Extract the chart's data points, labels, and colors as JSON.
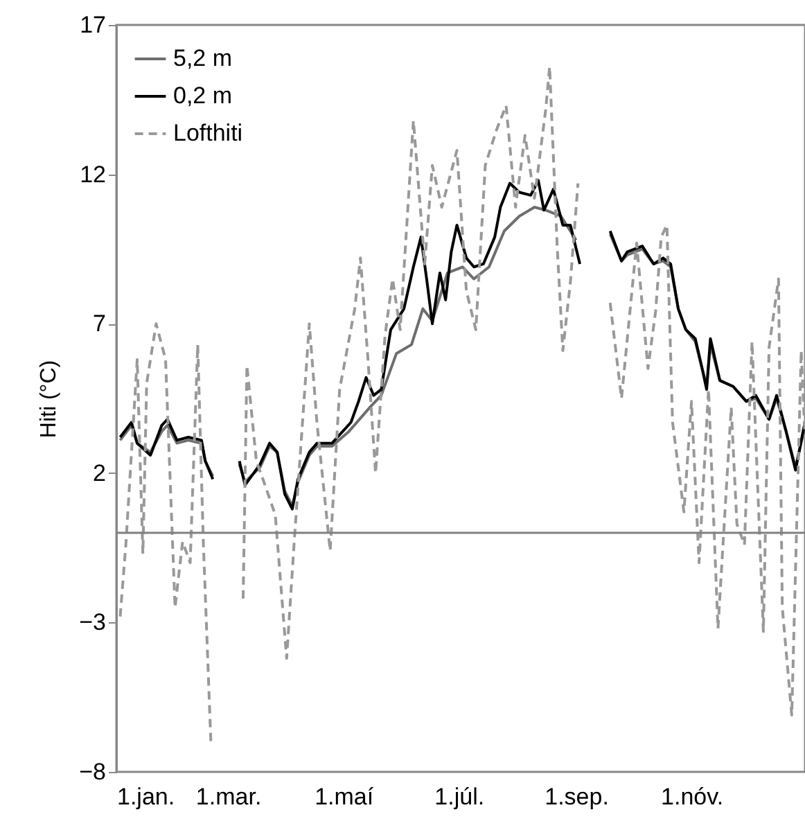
{
  "chart_data": {
    "type": "line",
    "ylabel": "Hiti (°C)",
    "xlim": [
      "--01-01",
      "--12-31"
    ],
    "xticks": [
      {
        "value": "--01-01",
        "label": "1.jan."
      },
      {
        "value": "--03-01",
        "label": "1.mar."
      },
      {
        "value": "--05-01",
        "label": "1.maí"
      },
      {
        "value": "--07-01",
        "label": "1.júl."
      },
      {
        "value": "--09-01",
        "label": "1.sep."
      },
      {
        "value": "--11-01",
        "label": "1.nóv."
      }
    ],
    "ylim": [
      -8,
      17
    ],
    "yticks": [
      -8,
      -3,
      2,
      7,
      12,
      17
    ],
    "grid": false,
    "legend": "top left",
    "marker": "none",
    "ref_lines": [
      {
        "axis": "y",
        "value": 0,
        "color": "#808080"
      }
    ],
    "series": [
      {
        "name": "5,2 m",
        "color": "#6e6e6e",
        "line_style": "solid",
        "x": [
          "--01-03",
          "--01-09",
          "--01-12",
          "--01-19",
          "--01-25",
          "--01-28",
          "--02-02",
          "--02-08",
          "--02-15",
          "--02-17",
          "--02-21",
          "--02-28",
          "--03-07",
          "--03-10",
          "--03-18",
          "--03-23",
          "--03-27",
          "--03-31",
          "--04-04",
          "--04-07",
          "--04-13",
          "--04-17",
          "--04-25",
          "--05-04",
          "--05-15",
          "--05-21",
          "--05-29",
          "--06-06",
          "--06-12",
          "--06-17",
          "--06-25",
          "--07-03",
          "--07-09",
          "--07-17",
          "--07-25",
          "--08-02",
          "--08-10",
          "--08-16",
          "--08-24",
          "--09-01",
          "--09-10",
          "--09-19",
          "--09-25",
          "--09-28",
          "--10-06",
          "--10-12",
          "--10-17",
          "--10-21",
          "--10-25",
          "--10-29",
          "--11-03",
          "--11-07",
          "--11-09",
          "--11-11",
          "--11-16",
          "--11-23",
          "--11-30",
          "--12-05",
          "--12-12",
          "--12-16",
          "--12-21",
          "--12-26",
          "--12-30",
          "--12-31"
        ],
        "values": [
          3.1,
          3.6,
          3.0,
          2.7,
          3.4,
          3.6,
          3.0,
          3.1,
          3.0,
          2.4,
          1.9,
          null,
          2.3,
          1.7,
          2.2,
          2.9,
          2.7,
          1.4,
          0.9,
          1.7,
          2.6,
          2.9,
          2.9,
          3.4,
          4.2,
          4.6,
          6.0,
          6.3,
          7.5,
          7.1,
          8.7,
          8.9,
          8.5,
          8.9,
          10.1,
          10.6,
          10.9,
          10.8,
          10.6,
          9.8,
          null,
          10.0,
          9.1,
          9.3,
          9.5,
          9.0,
          9.1,
          8.9,
          7.5,
          6.8,
          6.4,
          5.4,
          4.9,
          6.3,
          5.1,
          4.9,
          4.4,
          4.5,
          3.8,
          4.5,
          3.4,
          2.2,
          3.3,
          3.6
        ]
      },
      {
        "name": "0,2 m",
        "color": "#000000",
        "line_style": "solid",
        "x": [
          "--01-03",
          "--01-09",
          "--01-12",
          "--01-19",
          "--01-25",
          "--01-28",
          "--02-02",
          "--02-08",
          "--02-15",
          "--02-17",
          "--02-21",
          "--02-28",
          "--03-07",
          "--03-10",
          "--03-18",
          "--03-23",
          "--03-27",
          "--03-31",
          "--04-04",
          "--04-07",
          "--04-13",
          "--04-17",
          "--04-25",
          "--05-05",
          "--05-09",
          "--05-13",
          "--05-17",
          "--05-21",
          "--05-26",
          "--06-02",
          "--06-07",
          "--06-11",
          "--06-14",
          "--06-17",
          "--06-21",
          "--06-24",
          "--06-27",
          "--06-30",
          "--07-05",
          "--07-09",
          "--07-14",
          "--07-20",
          "--07-23",
          "--07-28",
          "--08-02",
          "--08-08",
          "--08-12",
          "--08-15",
          "--08-20",
          "--08-25",
          "--08-29",
          "--09-03",
          "--09-10",
          "--09-19",
          "--09-25",
          "--09-28",
          "--10-06",
          "--10-12",
          "--10-17",
          "--10-21",
          "--10-25",
          "--10-29",
          "--11-03",
          "--11-07",
          "--11-09",
          "--11-11",
          "--11-16",
          "--11-23",
          "--11-30",
          "--12-05",
          "--12-12",
          "--12-16",
          "--12-21",
          "--12-26",
          "--12-30",
          "--12-31"
        ],
        "values": [
          3.2,
          3.7,
          3.0,
          2.6,
          3.6,
          3.8,
          3.1,
          3.2,
          3.1,
          2.4,
          1.8,
          null,
          2.4,
          1.6,
          2.3,
          3.0,
          2.7,
          1.3,
          0.8,
          1.8,
          2.7,
          3.0,
          3.0,
          3.7,
          4.4,
          5.2,
          4.6,
          4.8,
          6.8,
          7.5,
          8.9,
          9.9,
          8.5,
          7.0,
          8.7,
          7.8,
          9.4,
          10.3,
          9.2,
          8.9,
          9.0,
          9.9,
          10.9,
          11.7,
          11.4,
          11.3,
          11.8,
          10.8,
          11.5,
          10.3,
          10.3,
          9.0,
          null,
          10.1,
          9.1,
          9.4,
          9.6,
          9.0,
          9.2,
          9.0,
          7.5,
          6.8,
          6.5,
          5.4,
          4.8,
          6.5,
          5.1,
          4.9,
          4.4,
          4.6,
          3.8,
          4.6,
          3.4,
          2.1,
          3.4,
          3.7
        ]
      },
      {
        "name": "Lofthiti",
        "color": "#999999",
        "line_style": "dashed",
        "x": [
          "--01-03",
          "--01-06",
          "--01-12",
          "--01-15",
          "--01-17",
          "--01-22",
          "--01-27",
          "--02-01",
          "--02-05",
          "--02-09",
          "--02-13",
          "--02-16",
          "--02-20",
          "--02-28",
          "--03-09",
          "--03-11",
          "--03-16",
          "--03-20",
          "--03-26",
          "--04-01",
          "--04-05",
          "--04-13",
          "--04-17",
          "--04-24",
          "--04-29",
          "--05-07",
          "--05-10",
          "--05-14",
          "--05-18",
          "--05-23",
          "--05-27",
          "--05-31",
          "--06-07",
          "--06-13",
          "--06-17",
          "--06-22",
          "--06-30",
          "--07-05",
          "--07-10",
          "--07-15",
          "--07-21",
          "--07-26",
          "--07-31",
          "--08-05",
          "--08-10",
          "--08-16",
          "--08-18",
          "--08-22",
          "--08-25",
          "--08-29",
          "--09-02",
          "--09-10",
          "--09-19",
          "--09-25",
          "--10-03",
          "--10-09",
          "--10-13",
          "--10-16",
          "--10-19",
          "--10-22",
          "--10-28",
          "--11-01",
          "--11-05",
          "--11-10",
          "--11-15",
          "--11-22",
          "--11-25",
          "--11-29",
          "--12-03",
          "--12-09",
          "--12-12",
          "--12-17",
          "--12-19",
          "--12-24",
          "--12-29",
          "--12-31"
        ],
        "values": [
          -2.8,
          -0.4,
          5.8,
          -0.7,
          5.0,
          7.0,
          5.8,
          -2.5,
          -0.3,
          -1.0,
          6.3,
          -0.4,
          -7.1,
          null,
          -2.2,
          5.6,
          2.4,
          1.7,
          0.6,
          -4.2,
          -0.3,
          7.0,
          3.7,
          -0.6,
          4.8,
          7.5,
          9.2,
          5.8,
          2.0,
          6.6,
          8.5,
          6.8,
          13.8,
          9.0,
          12.3,
          10.9,
          12.8,
          8.1,
          6.8,
          12.3,
          13.5,
          14.3,
          10.9,
          13.3,
          11.2,
          14.2,
          15.6,
          9.6,
          6.1,
          8.4,
          11.7,
          null,
          7.7,
          4.5,
          9.7,
          5.5,
          7.4,
          9.9,
          10.3,
          3.7,
          0.7,
          4.4,
          -1.0,
          4.8,
          -3.2,
          4.2,
          0.3,
          -0.4,
          6.4,
          -3.3,
          6.2,
          8.5,
          -2.5,
          -6.1,
          6.1,
          3.2
        ]
      }
    ]
  }
}
